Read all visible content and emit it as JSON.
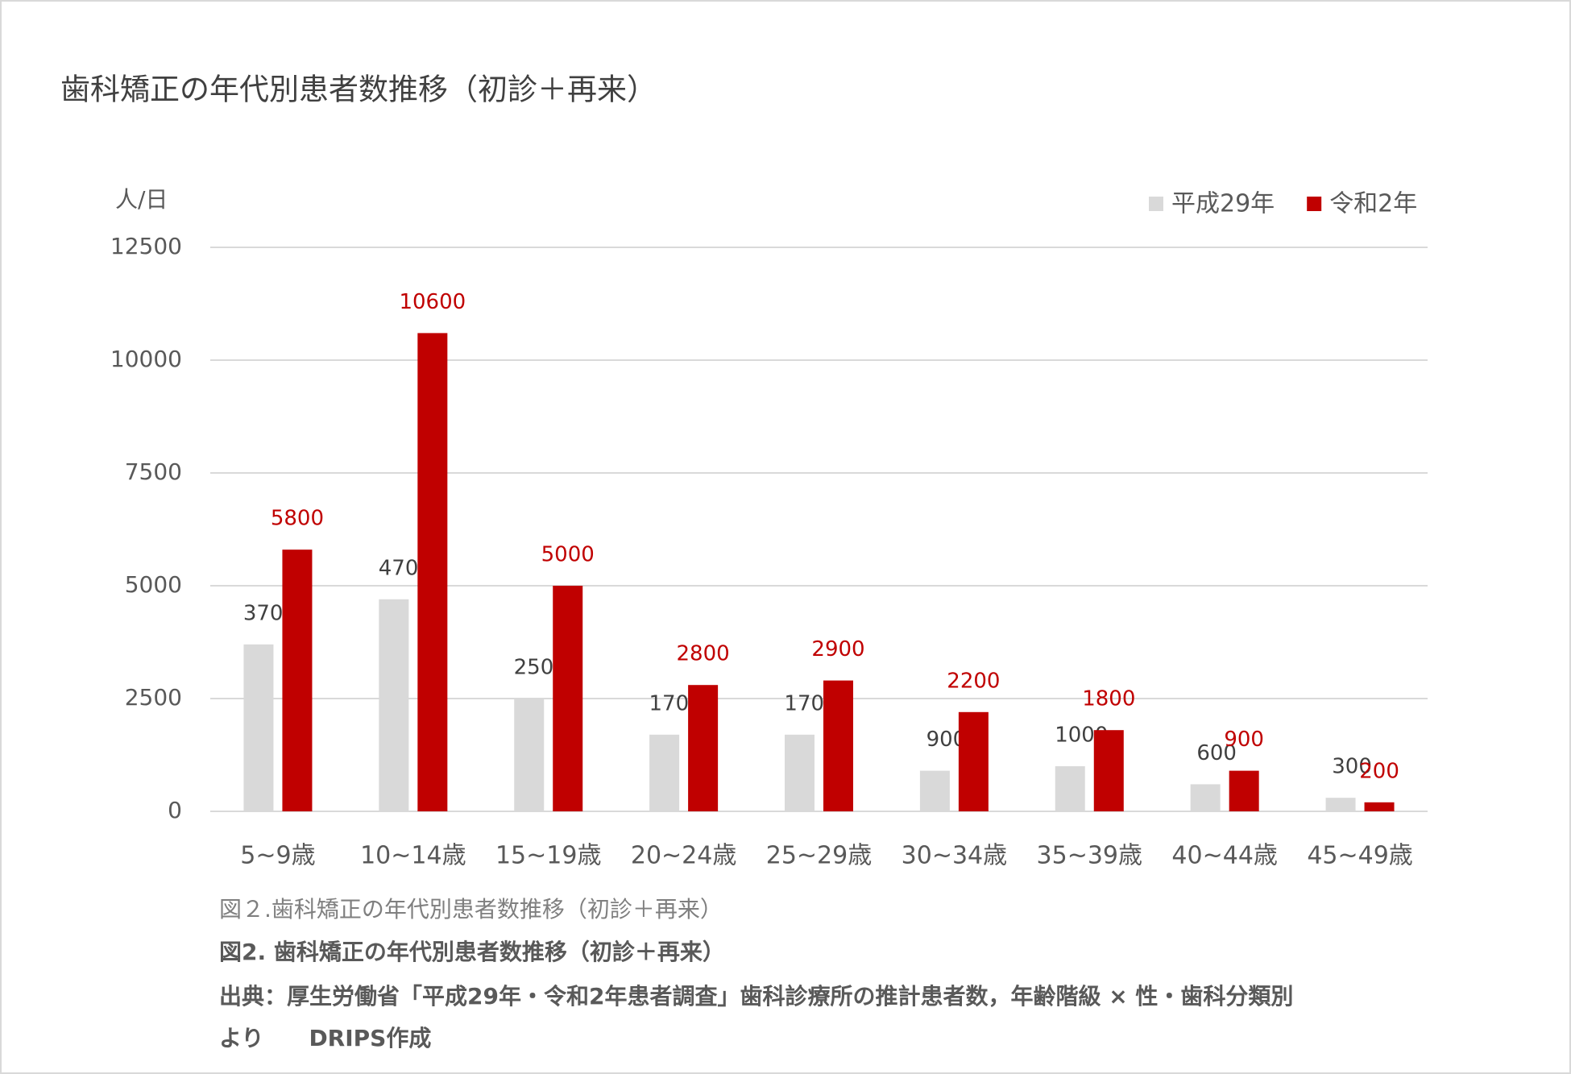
{
  "chart_data": {
    "type": "bar",
    "title": "歯科矯正の年代別患者数推移（初診＋再来）",
    "y_label": "人/日",
    "categories": [
      "5~9歳",
      "10~14歳",
      "15~19歳",
      "20~24歳",
      "25~29歳",
      "30~34歳",
      "35~39歳",
      "40~44歳",
      "45~49歳"
    ],
    "series": [
      {
        "name": "平成29年",
        "color": "#d9d9d9",
        "label_color": "#404040",
        "values": [
          3700,
          4700,
          2500,
          1700,
          1700,
          900,
          1000,
          600,
          300
        ]
      },
      {
        "name": "令和2年",
        "color": "#c00000",
        "label_color": "#c00000",
        "values": [
          5800,
          10600,
          5000,
          2800,
          2900,
          2200,
          1800,
          900,
          200
        ]
      }
    ],
    "ylim": [
      0,
      12500
    ],
    "yticks": [
      0,
      2500,
      5000,
      7500,
      10000,
      12500
    ],
    "grid": true,
    "legend": "top-right"
  },
  "captions": {
    "figure": "図２.歯科矯正の年代別患者数推移（初診＋再来）",
    "figure_bold": "図2. 歯科矯正の年代別患者数推移（初診＋再来）",
    "source": [
      "出典：厚生労働省「平成29年・令和2年患者調査」歯科診療所の推計患者数，年齢階級 × 性・歯科分類別",
      "より　　DRIPS作成"
    ]
  }
}
